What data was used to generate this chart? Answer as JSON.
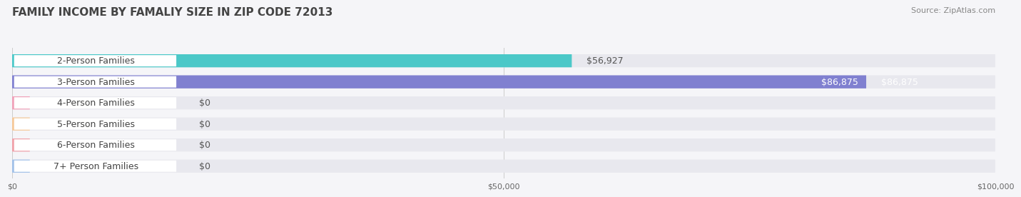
{
  "title": "FAMILY INCOME BY FAMALIY SIZE IN ZIP CODE 72013",
  "source": "Source: ZipAtlas.com",
  "categories": [
    "2-Person Families",
    "3-Person Families",
    "4-Person Families",
    "5-Person Families",
    "6-Person Families",
    "7+ Person Families"
  ],
  "values": [
    56927,
    86875,
    0,
    0,
    0,
    0
  ],
  "bar_colors": [
    "#4bc8c8",
    "#8080d0",
    "#f0a0b8",
    "#f5c898",
    "#f0a0a8",
    "#a0c0e8"
  ],
  "label_colors": [
    "#4bc8c8",
    "#8080d0",
    "#f0a0b8",
    "#f5c898",
    "#f0a0a8",
    "#a0c0e8"
  ],
  "value_labels": [
    "$56,927",
    "$86,875",
    "$0",
    "$0",
    "$0",
    "$0"
  ],
  "value_label_colors": [
    "#555555",
    "#ffffff",
    "#555555",
    "#555555",
    "#555555",
    "#555555"
  ],
  "xlim": [
    0,
    100000
  ],
  "xticks": [
    0,
    50000,
    100000
  ],
  "xtick_labels": [
    "$0",
    "$50,000",
    "$100,000"
  ],
  "background_color": "#f5f5f8",
  "bar_bg_color": "#e8e8ee",
  "title_fontsize": 11,
  "source_fontsize": 8,
  "label_fontsize": 9,
  "value_fontsize": 9
}
